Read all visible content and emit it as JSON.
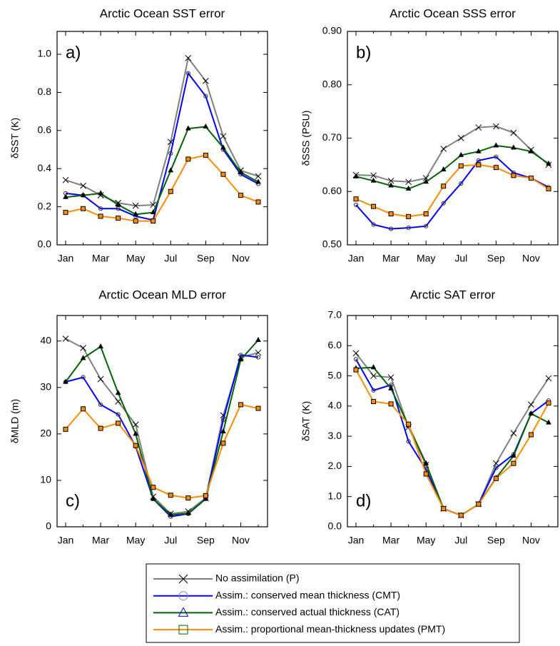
{
  "chart_data": [
    {
      "type": "line",
      "title": "Arctic Ocean SST error",
      "annotation": "a)",
      "y_label": "δSST (K)",
      "categories": [
        "Jan",
        null,
        "Mar",
        null,
        "May",
        null,
        "Jul",
        null,
        "Sep",
        null,
        "Nov",
        null
      ],
      "ylim": [
        0,
        1.12
      ],
      "yticks": [
        {
          "value": 0,
          "label": "0.0"
        },
        0.2,
        0.4,
        0.6,
        0.8,
        {
          "value": 1,
          "label": "1.0"
        }
      ],
      "series": [
        {
          "name": "No assimilation (P)",
          "color": "#808080",
          "marker": "x",
          "values": [
            0.34,
            0.31,
            0.26,
            0.22,
            0.205,
            0.21,
            0.54,
            0.98,
            0.86,
            0.57,
            0.39,
            0.36
          ]
        },
        {
          "name": "Assim.: conserved mean thickness (CMT)",
          "color": "#0000ff",
          "marker": "circle",
          "values": [
            0.27,
            0.26,
            0.19,
            0.19,
            0.15,
            0.13,
            0.48,
            0.9,
            0.78,
            0.5,
            0.37,
            0.32
          ]
        },
        {
          "name": "Assim.: conserved actual thickness (CAT)",
          "color": "#006400",
          "marker": "triangle",
          "values": [
            0.25,
            0.26,
            0.27,
            0.21,
            0.16,
            0.17,
            0.39,
            0.61,
            0.62,
            0.51,
            0.38,
            0.33
          ]
        },
        {
          "name": "Assim.: proportional mean-thickness updates (PMT)",
          "color": "#ff8c00",
          "marker": "square",
          "values": [
            0.17,
            0.19,
            0.15,
            0.14,
            0.125,
            0.125,
            0.28,
            0.45,
            0.47,
            0.37,
            0.26,
            0.225
          ]
        }
      ]
    },
    {
      "type": "line",
      "title": "Arctic Ocean SSS error",
      "annotation": "b)",
      "y_label": "δSSS (PSU)",
      "categories": [
        "Jan",
        null,
        "Mar",
        null,
        "May",
        null,
        "Jul",
        null,
        "Sep",
        null,
        "Nov",
        null
      ],
      "ylim": [
        0.5,
        0.9
      ],
      "yticks": [
        {
          "value": 0.5,
          "label": "0.50"
        },
        {
          "value": 0.6,
          "label": "0.60"
        },
        {
          "value": 0.7,
          "label": "0.70"
        },
        {
          "value": 0.8,
          "label": "0.80"
        },
        {
          "value": 0.9,
          "label": "0.90"
        }
      ],
      "series": [
        {
          "name": "No assimilation (P)",
          "color": "#808080",
          "marker": "x",
          "values": [
            0.631,
            0.63,
            0.62,
            0.618,
            0.625,
            0.68,
            0.7,
            0.72,
            0.722,
            0.71,
            0.678,
            0.65
          ]
        },
        {
          "name": "Assim.: conserved mean thickness (CMT)",
          "color": "#0000ff",
          "marker": "circle",
          "values": [
            0.575,
            0.538,
            0.53,
            0.532,
            0.535,
            0.578,
            0.615,
            0.658,
            0.665,
            0.635,
            0.625,
            0.608
          ]
        },
        {
          "name": "Assim.: conserved actual thickness (CAT)",
          "color": "#006400",
          "marker": "triangle",
          "values": [
            0.628,
            0.62,
            0.611,
            0.605,
            0.618,
            0.641,
            0.668,
            0.675,
            0.686,
            0.682,
            0.675,
            0.652
          ]
        },
        {
          "name": "Assim.: proportional mean-thickness updates (PMT)",
          "color": "#ff8c00",
          "marker": "square",
          "values": [
            0.586,
            0.572,
            0.558,
            0.553,
            0.558,
            0.61,
            0.648,
            0.65,
            0.645,
            0.63,
            0.625,
            0.605
          ]
        }
      ]
    },
    {
      "type": "line",
      "title": "Arctic Ocean MLD error",
      "annotation": "c)",
      "y_label": "δMLD (m)",
      "categories": [
        "Jan",
        null,
        "Mar",
        null,
        "May",
        null,
        "Jul",
        null,
        "Sep",
        null,
        "Nov",
        null
      ],
      "ylim": [
        0,
        45.5
      ],
      "yticks": [
        0,
        10,
        20,
        30,
        40
      ],
      "series": [
        {
          "name": "No assimilation (P)",
          "color": "#808080",
          "marker": "x",
          "values": [
            40.5,
            38.5,
            31.8,
            27,
            22,
            6.5,
            2.8,
            3.3,
            6.2,
            24,
            36.5,
            37.5
          ]
        },
        {
          "name": "Assim.: conserved mean thickness (CMT)",
          "color": "#0000ff",
          "marker": "circle",
          "values": [
            31.2,
            32.2,
            26.3,
            24.2,
            17.3,
            6,
            2.2,
            2.8,
            6,
            23,
            37,
            36.5
          ]
        },
        {
          "name": "Assim.: conserved actual thickness (CAT)",
          "color": "#006400",
          "marker": "triangle",
          "values": [
            31.2,
            36.3,
            38.8,
            28.8,
            20,
            6,
            2.6,
            2.9,
            6,
            20.5,
            36,
            40.2
          ]
        },
        {
          "name": "Assim.: proportional mean-thickness updates (PMT)",
          "color": "#ff8c00",
          "marker": "square",
          "values": [
            21,
            25.4,
            21.2,
            22.3,
            17.5,
            8.5,
            6.8,
            6.2,
            6.7,
            18,
            26.3,
            25.5
          ]
        }
      ]
    },
    {
      "type": "line",
      "title": "Arctic SAT error",
      "annotation": "d)",
      "y_label": "δSAT (K)",
      "categories": [
        "Jan",
        null,
        "Mar",
        null,
        "May",
        null,
        "Jul",
        null,
        "Sep",
        null,
        "Nov",
        null
      ],
      "ylim": [
        0,
        7
      ],
      "yticks": [
        {
          "value": 0,
          "label": "0.0"
        },
        {
          "value": 1,
          "label": "1.0"
        },
        {
          "value": 2,
          "label": "2.0"
        },
        {
          "value": 3,
          "label": "3.0"
        },
        {
          "value": 4,
          "label": "4.0"
        },
        {
          "value": 5,
          "label": "5.0"
        },
        {
          "value": 6,
          "label": "6.0"
        },
        {
          "value": 7,
          "label": "7.0"
        }
      ],
      "series": [
        {
          "name": "No assimilation (P)",
          "color": "#808080",
          "marker": "x",
          "values": [
            5.75,
            5.0,
            4.95,
            3.3,
            2.05,
            0.6,
            0.38,
            0.75,
            2.1,
            3.1,
            4.05,
            4.92
          ]
        },
        {
          "name": "Assim.: conserved mean thickness (CMT)",
          "color": "#0000ff",
          "marker": "circle",
          "values": [
            5.55,
            4.52,
            4.7,
            2.83,
            1.9,
            0.6,
            0.38,
            0.75,
            1.95,
            2.4,
            3.75,
            4.18
          ]
        },
        {
          "name": "Assim.: conserved actual thickness (CAT)",
          "color": "#006400",
          "marker": "triangle",
          "values": [
            5.25,
            5.28,
            4.58,
            3.35,
            2.1,
            0.6,
            0.38,
            0.75,
            1.62,
            2.35,
            3.75,
            3.45
          ]
        },
        {
          "name": "Assim.: proportional mean-thickness updates (PMT)",
          "color": "#ff8c00",
          "marker": "square",
          "values": [
            5.2,
            4.15,
            4.07,
            3.4,
            1.75,
            0.6,
            0.38,
            0.75,
            1.6,
            2.1,
            3.05,
            4.1
          ]
        }
      ]
    }
  ]
}
